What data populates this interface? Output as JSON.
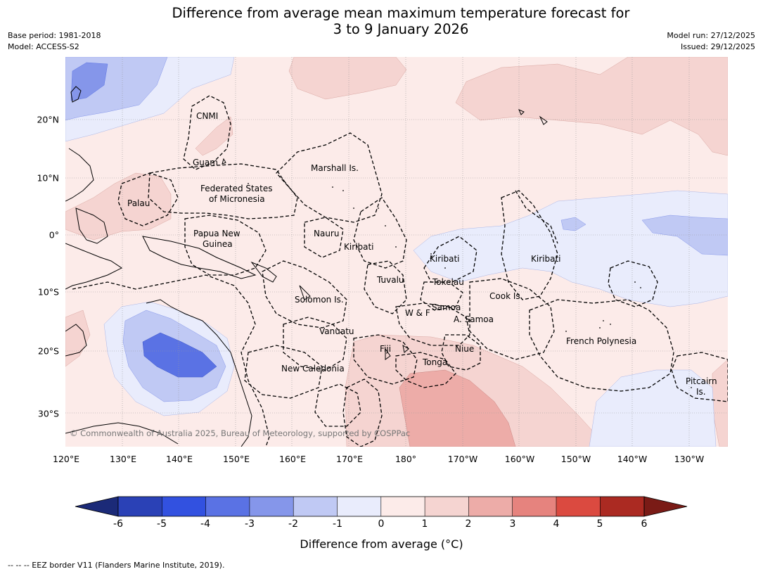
{
  "title": {
    "line1": "Difference from average mean maximum temperature forecast for",
    "line2": "3 to 9 January 2026"
  },
  "meta_left": {
    "base_period": "Base period: 1981-2018",
    "model": "Model: ACCESS-S2"
  },
  "meta_right": {
    "model_run": "Model run: 27/12/2025",
    "issued": "Issued: 29/12/2025"
  },
  "map": {
    "copyright": "© Commonwealth of Australia 2025, Bureau of Meteorology, supported by COSPPac",
    "lon_ticks": [
      "120°E",
      "130°E",
      "140°E",
      "150°E",
      "160°E",
      "170°E",
      "180°",
      "170°W",
      "160°W",
      "150°W",
      "140°W",
      "130°W"
    ],
    "lat_ticks": [
      "20°N",
      "10°N",
      "0°",
      "10°S",
      "20°S",
      "30°S"
    ],
    "labels": {
      "cnmi": "CNMI",
      "guam": "Guam",
      "marshall": "Marshall Is.",
      "fsm_1": "Federated States",
      "fsm_2": "of Micronesia",
      "palau": "Palau",
      "png_1": "Papua New",
      "png_2": "Guinea",
      "nauru": "Nauru",
      "kiribati_w": "Kiribati",
      "kiribati_c": "Kiribati",
      "kiribati_e": "Kiribati",
      "tuvalu": "Tuvalu",
      "tokelau": "Tokelau",
      "cook": "Cook Is.",
      "solomon": "Solomon Is.",
      "samoa": "Samoa",
      "wf": "W & F",
      "asamoa": "A. Samoa",
      "vanuatu": "Vanuatu",
      "fiji": "Fiji",
      "niue": "Niue",
      "tonga": "Tonga",
      "newcal": "New Caledonia",
      "frpoly": "French Polynesia",
      "pitcairn_1": "Pitcairn",
      "pitcairn_2": "Is."
    }
  },
  "colorbar": {
    "ticks": [
      "-6",
      "-5",
      "-4",
      "-3",
      "-2",
      "-1",
      "0",
      "1",
      "2",
      "3",
      "4",
      "5",
      "6"
    ],
    "label": "Difference from average (°C)",
    "colors": {
      "below_min": "#1b2a78",
      "c1": "#2a41b6",
      "c2": "#3251e0",
      "c3": "#5a72e4",
      "c4": "#8596ea",
      "c5": "#c0c9f4",
      "c6": "#e9ecfc",
      "c7": "#fcebe9",
      "c8": "#f5d4d1",
      "c9": "#edaca8",
      "c10": "#e6837e",
      "c11": "#db4a40",
      "c12": "#ab2a22",
      "above_max": "#7a1b16"
    }
  },
  "footer": {
    "note": "--  --  -- EEZ border V11 (Flanders Marine Institute, 2019)."
  }
}
